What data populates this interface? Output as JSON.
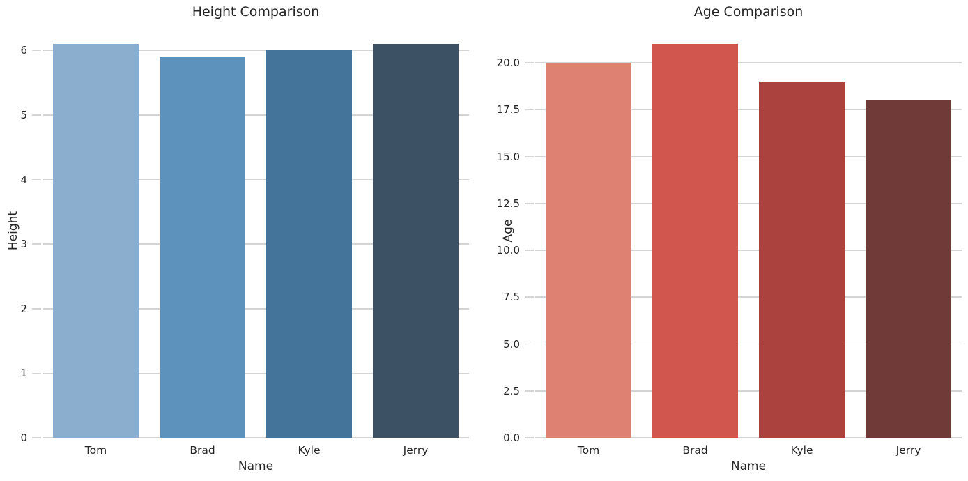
{
  "figure": {
    "background_color": "#ffffff",
    "text_color": "#262626",
    "grid_color": "#d4d4d4"
  },
  "chart_data": [
    {
      "type": "bar",
      "title": "Height Comparison",
      "xlabel": "Name",
      "ylabel": "Height",
      "categories": [
        "Tom",
        "Brad",
        "Kyle",
        "Jerry"
      ],
      "values": [
        6.1,
        5.9,
        6.0,
        6.1
      ],
      "bar_colors": [
        "#8badce",
        "#5d92bd",
        "#44749a",
        "#3d5165"
      ],
      "yticks": [
        0,
        1,
        2,
        3,
        4,
        5,
        6
      ],
      "ytick_labels": [
        "0",
        "1",
        "2",
        "3",
        "4",
        "5",
        "6"
      ],
      "ylim": [
        0,
        6.405
      ],
      "grid": true,
      "legend": null,
      "bar_width_ratio": 0.8
    },
    {
      "type": "bar",
      "title": "Age Comparison",
      "xlabel": "Name",
      "ylabel": "Age",
      "categories": [
        "Tom",
        "Brad",
        "Kyle",
        "Jerry"
      ],
      "values": [
        20,
        21,
        19,
        18
      ],
      "bar_colors": [
        "#df8172",
        "#d0564e",
        "#ac423d",
        "#6f3a38"
      ],
      "yticks": [
        0,
        2.5,
        5,
        7.5,
        10,
        12.5,
        15,
        17.5,
        20
      ],
      "ytick_labels": [
        "0.0",
        "2.5",
        "5.0",
        "7.5",
        "10.0",
        "12.5",
        "15.0",
        "17.5",
        "20.0"
      ],
      "ylim": [
        0,
        22.05
      ],
      "grid": true,
      "legend": null,
      "bar_width_ratio": 0.8
    }
  ]
}
